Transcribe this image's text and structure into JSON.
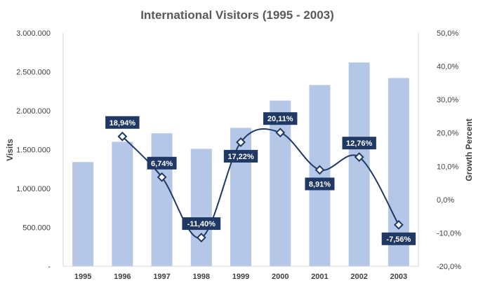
{
  "chart_data": {
    "type": "bar+line",
    "title": "International Visitors (1995 - 2003)",
    "categories": [
      "1995",
      "1996",
      "1997",
      "1998",
      "1999",
      "2000",
      "2001",
      "2002",
      "2003"
    ],
    "series": [
      {
        "type": "bar",
        "axis": "left",
        "values": [
          1340000,
          1600000,
          1710000,
          1510000,
          1780000,
          2130000,
          2330000,
          2620000,
          2420000
        ],
        "color": "#b4c7e7"
      },
      {
        "type": "line",
        "axis": "right",
        "values": [
          null,
          18.94,
          6.74,
          -11.4,
          17.22,
          20.11,
          8.91,
          12.76,
          -7.56
        ],
        "labels": [
          "",
          "18,94%",
          "6,74%",
          "-11,40%",
          "17,22%",
          "20,11%",
          "8,91%",
          "12,76%",
          "-7,56%"
        ],
        "label_positions": [
          "",
          "above",
          "above",
          "above",
          "below",
          "above",
          "below",
          "above",
          "below"
        ],
        "color": "#1f3864"
      }
    ],
    "y_left": {
      "label": "Visits",
      "min": 0,
      "max": 3000000,
      "ticks": [
        0,
        500000,
        1000000,
        1500000,
        2000000,
        2500000,
        3000000
      ],
      "tick_labels": [
        "-",
        "500.000",
        "1.000.000",
        "1.500.000",
        "2.000.000",
        "2.500.000",
        "3.000.000"
      ]
    },
    "y_right": {
      "label": "Growth Percent",
      "min": -20,
      "max": 50,
      "ticks": [
        -20,
        -10,
        0,
        10,
        20,
        30,
        40,
        50
      ],
      "tick_labels": [
        "-20,0%",
        "-10,0%",
        "0,0%",
        "10,0%",
        "20,0%",
        "30,0%",
        "40,0%",
        "50,0%"
      ]
    },
    "grid": false,
    "legend": "none"
  }
}
